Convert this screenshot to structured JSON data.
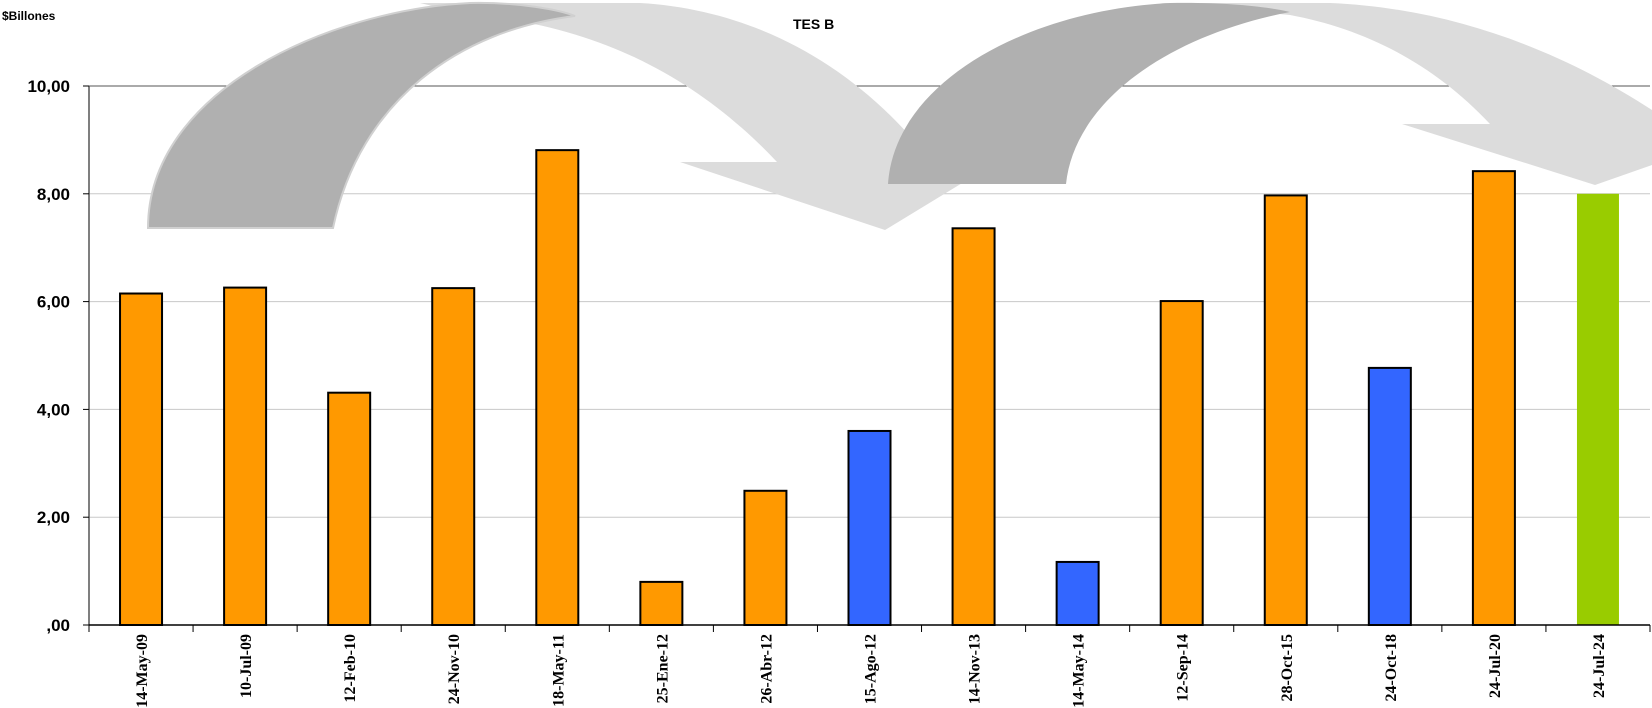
{
  "unit_label": "$Billones",
  "title": "TES B",
  "colors": {
    "orange": "#FF9900",
    "blue": "#3366FF",
    "green": "#99CC00",
    "arrow_dark": "#B0B0B0",
    "arrow_light": "#DCDCDC",
    "gridline": "#C8C8C8"
  },
  "chart_data": {
    "type": "bar",
    "title": "TES B",
    "ylabel": "$Billones",
    "xlabel": "",
    "ylim": [
      0,
      10
    ],
    "yticks": [
      ",00",
      "2,00",
      "4,00",
      "6,00",
      "8,00",
      "10,00"
    ],
    "grid": true,
    "categories": [
      "14-May-09",
      "10-Jul-09",
      "12-Feb-10",
      "24-Nov-10",
      "18-May-11",
      "25-Ene-12",
      "26-Abr-12",
      "15-Ago-12",
      "14-Nov-13",
      "14-May-14",
      "12-Sep-14",
      "28-Oct-15",
      "24-Oct-18",
      "24-Jul-20",
      "24-Jul-24"
    ],
    "values": [
      6.15,
      6.26,
      4.31,
      6.25,
      8.81,
      0.8,
      2.49,
      3.6,
      7.36,
      1.17,
      6.01,
      7.97,
      4.77,
      8.42,
      8.0
    ],
    "bar_colors": [
      "orange",
      "orange",
      "orange",
      "orange",
      "orange",
      "orange",
      "orange",
      "blue",
      "orange",
      "blue",
      "orange",
      "orange",
      "blue",
      "orange",
      "green"
    ]
  }
}
